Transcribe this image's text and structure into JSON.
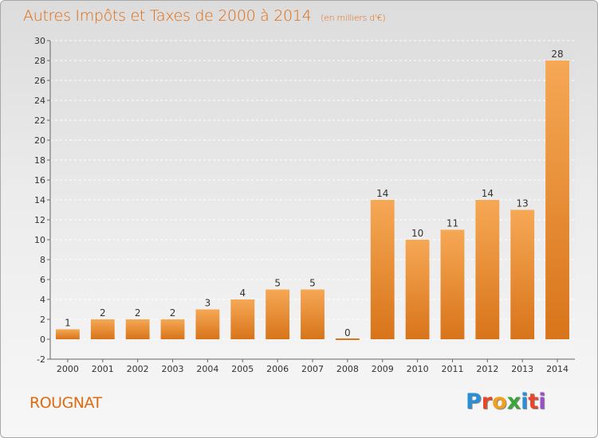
{
  "header": {
    "title": "Autres Impôts et Taxes de 2000 à 2014",
    "subtitle": "(en milliers d'€)"
  },
  "footer": {
    "commune": "ROUGNAT",
    "logo_text": "Proxiti",
    "logo_colors": [
      "#2a8fd6",
      "#e8452a",
      "#f0a020",
      "#3aa63a",
      "#2a8fd6",
      "#e8452a",
      "#9b4fc8"
    ]
  },
  "chart_data": {
    "type": "bar",
    "categories": [
      "2000",
      "2001",
      "2002",
      "2003",
      "2004",
      "2005",
      "2006",
      "2007",
      "2008",
      "2009",
      "2010",
      "2011",
      "2012",
      "2013",
      "2014"
    ],
    "values": [
      1,
      2,
      2,
      2,
      3,
      4,
      5,
      5,
      0,
      14,
      10,
      11,
      14,
      13,
      28
    ],
    "data_labels": [
      "1",
      "2",
      "2",
      "2",
      "3",
      "4",
      "5",
      "5",
      "0",
      "14",
      "10",
      "11",
      "14",
      "13",
      "28"
    ],
    "ylim": [
      -2,
      30
    ],
    "yticks": [
      -2,
      0,
      2,
      4,
      6,
      8,
      10,
      12,
      14,
      16,
      18,
      20,
      22,
      24,
      26,
      28,
      30
    ],
    "grid": true,
    "bar_color_top": "#f6a855",
    "bar_color_bottom": "#d8741a",
    "title": "Autres Impôts et Taxes de 2000 à 2014",
    "xlabel": "",
    "ylabel": ""
  }
}
